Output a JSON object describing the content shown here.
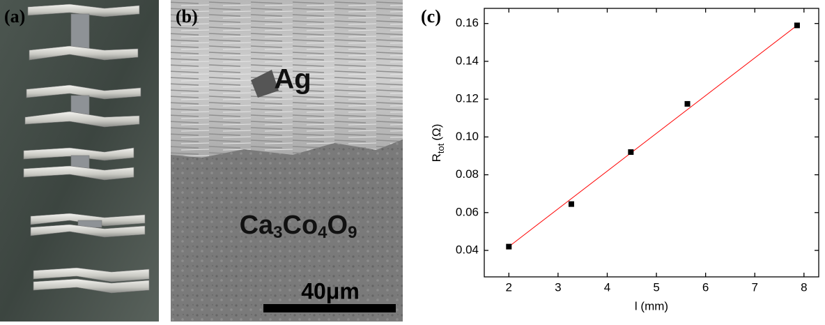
{
  "panels": {
    "a": {
      "label": "(a)"
    },
    "b": {
      "label": "(b)",
      "upper_text": "Ag",
      "lower_text": [
        "Ca",
        "3",
        "Co",
        "4",
        "O",
        "9"
      ],
      "scale_bar": "40μm"
    }
  },
  "chart_data": {
    "type": "scatter",
    "panel_label": "(c)",
    "xlabel": "l (mm)",
    "ylabel": {
      "main": "R",
      "sub": "tot",
      "unit": "(Ω)"
    },
    "xlim": [
      1.5,
      8.3
    ],
    "ylim": [
      0.026,
      0.168
    ],
    "xticks": [
      2,
      3,
      4,
      5,
      6,
      7,
      8
    ],
    "yticks": [
      0.04,
      0.06,
      0.08,
      {
        "value": 0.1,
        "label": "0.10"
      },
      0.12,
      0.14,
      0.16
    ],
    "series": [
      {
        "type": "scatter",
        "color": "#000000",
        "x": [
          2,
          3.27,
          4.48,
          5.63,
          7.86
        ],
        "values": [
          0.042,
          0.0645,
          0.092,
          0.1175,
          0.159
        ]
      },
      {
        "type": "line",
        "color": "#ff0000",
        "x": [
          2,
          7.86
        ],
        "values": [
          0.042,
          0.159
        ]
      }
    ]
  }
}
